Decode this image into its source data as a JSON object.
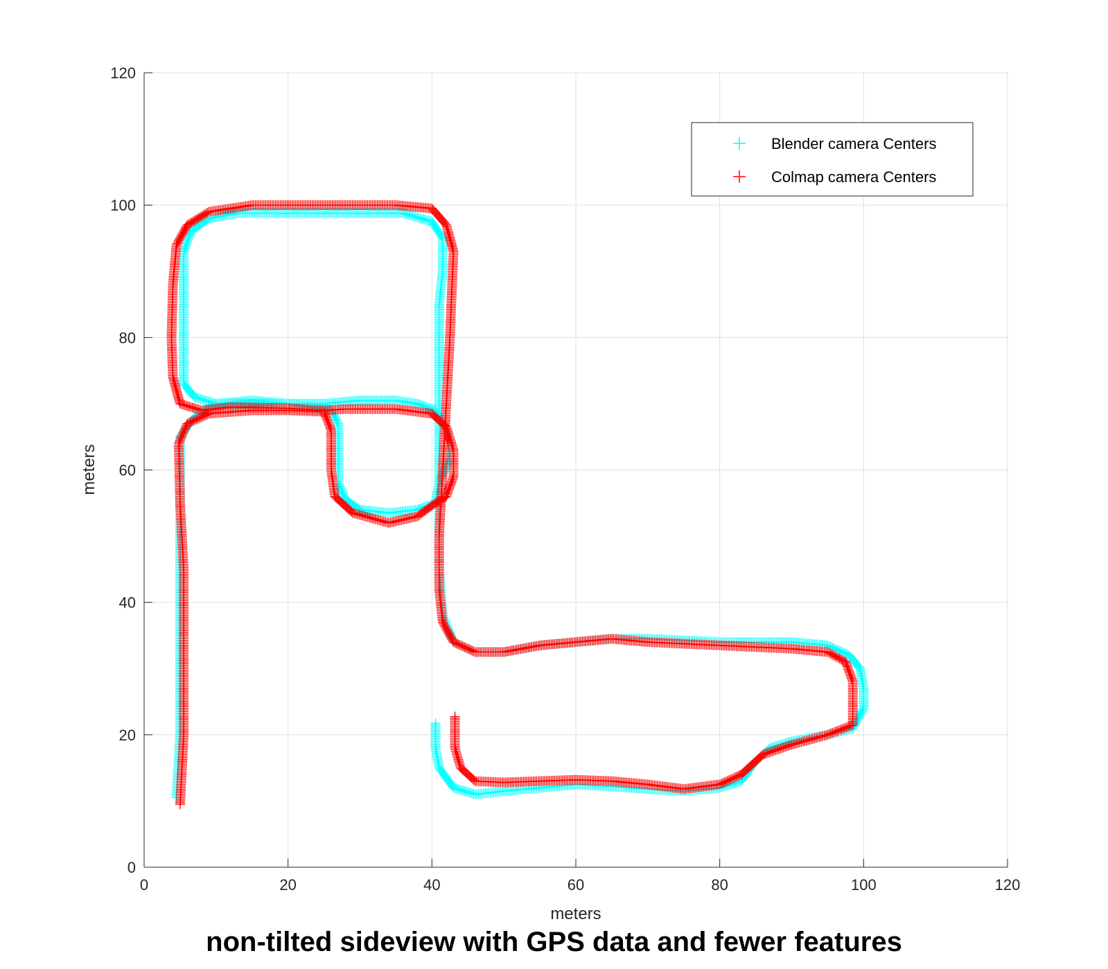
{
  "chart_data": {
    "type": "scatter",
    "title": "non-tilted sideview with GPS data and fewer features",
    "xlabel": "meters",
    "ylabel": "meters",
    "xlim": [
      0,
      120
    ],
    "ylim": [
      0,
      120
    ],
    "xticks": [
      0,
      20,
      40,
      60,
      80,
      100,
      120
    ],
    "yticks": [
      0,
      20,
      40,
      60,
      80,
      100,
      120
    ],
    "grid": true,
    "legend_position": "top-right",
    "marker": "+",
    "series": [
      {
        "name": "Blender camera Centers",
        "color": "#00ffff",
        "paths": [
          [
            [
              4.5,
              10.5
            ],
            [
              5,
              20
            ],
            [
              5,
              30
            ],
            [
              5,
              45
            ],
            [
              5,
              60
            ],
            [
              5,
              65
            ],
            [
              7,
              68
            ],
            [
              10,
              70
            ],
            [
              15,
              70.5
            ],
            [
              20,
              70
            ],
            [
              25,
              70
            ],
            [
              30,
              70.5
            ],
            [
              35,
              70.5
            ],
            [
              38,
              70
            ],
            [
              40.5,
              69
            ],
            [
              42,
              66
            ],
            [
              42.5,
              62
            ],
            [
              41,
              58
            ],
            [
              40.5,
              55
            ],
            [
              38,
              54
            ],
            [
              34,
              53.5
            ],
            [
              30,
              54
            ],
            [
              28,
              55.5
            ],
            [
              27,
              58
            ],
            [
              27,
              62
            ],
            [
              27,
              67
            ],
            [
              26,
              69
            ],
            [
              20,
              70
            ],
            [
              10,
              70
            ],
            [
              7,
              71
            ],
            [
              5.5,
              73
            ],
            [
              5.5,
              78
            ],
            [
              5.5,
              85
            ],
            [
              5.5,
              93
            ],
            [
              6.5,
              96
            ],
            [
              9,
              98
            ],
            [
              13,
              98.8
            ],
            [
              20,
              98.8
            ],
            [
              30,
              98.8
            ],
            [
              36,
              98.8
            ],
            [
              40,
              97.5
            ],
            [
              41.5,
              95
            ],
            [
              41.5,
              90
            ],
            [
              41,
              85
            ],
            [
              41,
              75
            ],
            [
              41,
              65
            ],
            [
              41,
              55
            ],
            [
              41,
              45
            ],
            [
              41.5,
              38
            ],
            [
              43,
              34
            ],
            [
              46,
              32.5
            ],
            [
              50,
              32.5
            ],
            [
              55,
              33.5
            ],
            [
              60,
              34
            ],
            [
              65,
              34.5
            ],
            [
              70,
              34.5
            ],
            [
              80,
              34
            ],
            [
              90,
              34
            ],
            [
              95,
              33.5
            ],
            [
              98,
              32
            ],
            [
              99.5,
              30
            ],
            [
              100,
              27
            ],
            [
              100,
              24
            ],
            [
              98.5,
              21
            ],
            [
              95,
              20
            ],
            [
              90,
              19
            ],
            [
              87,
              18
            ],
            [
              85,
              16
            ],
            [
              83,
              13
            ],
            [
              80,
              12
            ],
            [
              75,
              11.5
            ],
            [
              70,
              11.8
            ],
            [
              65,
              12.2
            ],
            [
              60,
              12.5
            ],
            [
              55,
              12
            ],
            [
              50,
              11.5
            ],
            [
              46,
              11
            ],
            [
              43,
              12
            ],
            [
              41,
              15
            ],
            [
              40.5,
              18
            ],
            [
              40.5,
              22
            ]
          ]
        ]
      },
      {
        "name": "Colmap camera Centers",
        "color": "#ff0000",
        "paths": [
          [
            [
              5,
              9.5
            ],
            [
              5.5,
              20
            ],
            [
              5.5,
              35
            ],
            [
              5.5,
              45
            ],
            [
              5,
              55
            ],
            [
              4.8,
              64
            ],
            [
              6,
              67
            ],
            [
              9,
              68.5
            ],
            [
              15,
              69
            ],
            [
              20,
              69
            ],
            [
              25,
              68.8
            ],
            [
              26,
              66
            ],
            [
              26,
              60
            ],
            [
              26.5,
              56
            ],
            [
              29,
              53.5
            ],
            [
              34,
              52
            ],
            [
              38,
              53
            ],
            [
              40.5,
              55
            ],
            [
              42,
              56
            ],
            [
              43,
              59
            ],
            [
              43,
              63
            ],
            [
              42,
              66.5
            ],
            [
              40,
              68.5
            ],
            [
              35,
              69.2
            ],
            [
              28,
              69.2
            ],
            [
              25,
              69
            ],
            [
              20,
              69.3
            ],
            [
              12,
              69.5
            ],
            [
              8,
              69
            ],
            [
              5,
              70
            ],
            [
              4,
              74
            ],
            [
              3.8,
              80
            ],
            [
              4,
              88
            ],
            [
              4.5,
              94
            ],
            [
              6,
              97
            ],
            [
              9,
              99
            ],
            [
              15,
              100
            ],
            [
              25,
              100
            ],
            [
              35,
              100
            ],
            [
              40,
              99.5
            ],
            [
              42,
              97
            ],
            [
              43,
              93
            ],
            [
              42.8,
              88
            ],
            [
              42.5,
              80
            ],
            [
              42,
              70
            ],
            [
              41.5,
              60
            ],
            [
              41,
              50
            ],
            [
              41,
              42
            ],
            [
              41.5,
              37
            ],
            [
              43,
              34
            ],
            [
              46,
              32.5
            ],
            [
              50,
              32.5
            ],
            [
              55,
              33.5
            ],
            [
              60,
              34
            ],
            [
              65,
              34.5
            ],
            [
              70,
              34
            ],
            [
              80,
              33.5
            ],
            [
              90,
              33
            ],
            [
              95,
              32.5
            ],
            [
              97.5,
              31
            ],
            [
              98.5,
              28
            ],
            [
              98.5,
              24
            ],
            [
              98.5,
              21.5
            ],
            [
              95,
              20
            ],
            [
              90,
              18.5
            ],
            [
              86,
              17
            ],
            [
              83,
              14
            ],
            [
              80,
              12.5
            ],
            [
              75,
              11.8
            ],
            [
              70,
              12.5
            ],
            [
              65,
              13
            ],
            [
              60,
              13.2
            ],
            [
              55,
              13
            ],
            [
              50,
              12.8
            ],
            [
              46,
              13
            ],
            [
              44,
              15
            ],
            [
              43.2,
              18
            ],
            [
              43.2,
              23
            ]
          ]
        ]
      }
    ]
  }
}
